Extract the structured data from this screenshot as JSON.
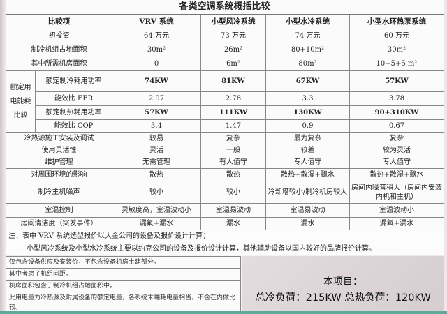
{
  "title": "各类空调系统概括比较",
  "headers": [
    "比较项",
    "VRV 系统",
    "小型风冷系统",
    "小型水冷系统",
    "小型水环热泵系统"
  ],
  "rows_top": [
    {
      "label": "初投资",
      "values": [
        "64 万元",
        "73 万元",
        "74 万元",
        "60 万元"
      ]
    },
    {
      "label": "制冷机组占地面积",
      "values": [
        "30m²",
        "26m²",
        "80+10m²",
        "30m²"
      ]
    },
    {
      "label": "其中所需机房面积",
      "values": [
        "0",
        "6m²",
        "80m²",
        "10+5+5 m²"
      ]
    }
  ],
  "power_group_label": "额定用电能耗比较",
  "power_rows": [
    {
      "label": "额定制冷耗用功率",
      "values": [
        "74KW",
        "81KW",
        "67KW",
        "57KW"
      ]
    },
    {
      "label": "能效比 EER",
      "values": [
        "2.97",
        "2.78",
        "3.3",
        "3.78"
      ]
    },
    {
      "label": "额定制热耗用功率",
      "values": [
        "57KW",
        "111KW",
        "130KW",
        "90+310KW"
      ]
    },
    {
      "label": "能效比 COP",
      "values": [
        "3.4",
        "1.47",
        "0.9",
        "0.67"
      ]
    }
  ],
  "rows_bottom": [
    {
      "label": "冷热源施工安装及调试",
      "values": [
        "较易",
        "复杂",
        "最为复杂",
        "复杂"
      ]
    },
    {
      "label": "使用灵活性",
      "values": [
        "灵活",
        "一般",
        "较差",
        "较为灵活"
      ]
    },
    {
      "label": "维护管理",
      "values": [
        "无需管理",
        "有人值守",
        "专人值守",
        "专人值守"
      ]
    },
    {
      "label": "对周围环境的影响",
      "values": [
        "散热",
        "散热",
        "散热+散湿+飘水",
        "散热+散湿+飘水"
      ]
    },
    {
      "label": "制冷主机噪声",
      "values": [
        "较小",
        "较小",
        "冷却塔较小/制冷机房较大",
        "房间内噪音稍大（房间内安装内机和主机）"
      ]
    },
    {
      "label": "室温控制",
      "values": [
        "灵敏度高，室温波动小",
        "室温易波动",
        "室温易波动",
        "室温波动小"
      ]
    },
    {
      "label": "房间清洁度（突发事件）",
      "values": [
        "漏氟+漏水",
        "漏水",
        "漏水",
        "漏氟+漏水"
      ]
    }
  ],
  "notes": [
    "注：表中 VRV 系统选型报价以大金公司的设备及报价设计计算；",
    "小型风冷系统及小型水冷系统主要以约克公司的设备及报价设计计算，其他辅助设备以国内较好的品牌报价计算。"
  ],
  "footnotes": [
    "仅包含设备供应及安装价，不包含设备机房土建部分。",
    "其中考虑了机组间距。",
    "机房面积包含于制冷机组占地面积中。",
    "此用电量为冷热源及附属设备的额定电量，各系统末端耗电量相当，不含在内做比较。"
  ],
  "project": {
    "title": "本项目：",
    "loads": "总冷负荷：215KW 总热负荷：120KW"
  }
}
